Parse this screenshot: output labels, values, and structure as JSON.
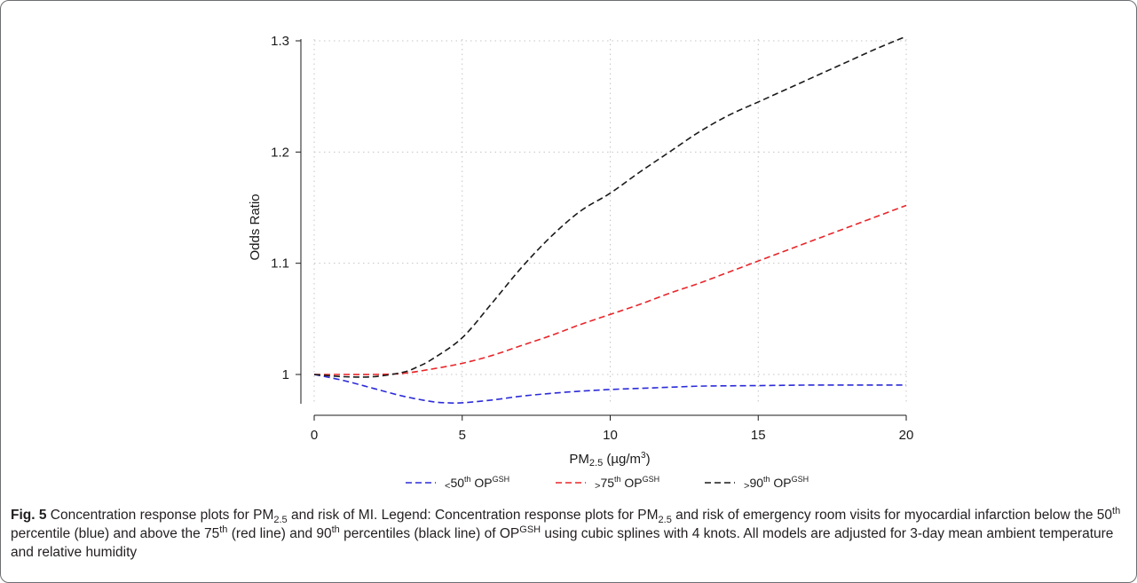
{
  "chart_data": {
    "type": "line",
    "title": "",
    "xlabel": {
      "main": "PM",
      "sub": "2.5",
      "unit_pre": " (µg/m",
      "unit_sup": "3",
      "unit_post": ")"
    },
    "ylabel": "Odds Ratio",
    "xlim": [
      0,
      20
    ],
    "ylim": [
      0.975,
      1.3
    ],
    "xticks": [
      0,
      5,
      10,
      15,
      20
    ],
    "xtick_labels": [
      "0",
      "5",
      "10",
      "15",
      "20"
    ],
    "yticks": [
      1.0,
      1.1,
      1.2,
      1.3
    ],
    "ytick_labels": [
      "1",
      "1.1",
      "1.2",
      "1.3"
    ],
    "grid": true,
    "legend_position": "bottom",
    "series": [
      {
        "legend": {
          "pre": "<",
          "num": "50",
          "sup": "th",
          "op": " OP",
          "opsup": "GSH"
        },
        "color": "#2b2bd9",
        "x": [
          0,
          1,
          2,
          3,
          4,
          4.5,
          5,
          6,
          7,
          8,
          9,
          10,
          11,
          12,
          13,
          14,
          15,
          16,
          17,
          18,
          19,
          20
        ],
        "y": [
          1.0,
          0.9945,
          0.9875,
          0.9805,
          0.9755,
          0.9745,
          0.9745,
          0.977,
          0.9805,
          0.983,
          0.985,
          0.9865,
          0.9875,
          0.9885,
          0.9895,
          0.9898,
          0.99,
          0.9903,
          0.9905,
          0.9905,
          0.9905,
          0.9905
        ]
      },
      {
        "legend": {
          "pre": ">",
          "num": "75",
          "sup": "th",
          "op": " OP",
          "opsup": "GSH"
        },
        "color": "#e8262a",
        "x": [
          0,
          1,
          2,
          3,
          4,
          5,
          6,
          7,
          8,
          9,
          10,
          11,
          12,
          13,
          14,
          15,
          16,
          17,
          18,
          19,
          20
        ],
        "y": [
          1.0,
          1.0,
          1.0,
          1.001,
          1.005,
          1.01,
          1.017,
          1.026,
          1.035,
          1.045,
          1.054,
          1.063,
          1.073,
          1.082,
          1.092,
          1.102,
          1.112,
          1.122,
          1.132,
          1.142,
          1.152
        ]
      },
      {
        "legend": {
          "pre": ">",
          "num": "90",
          "sup": "th",
          "op": " OP",
          "opsup": "GSH"
        },
        "color": "#1a1a1a",
        "x": [
          0,
          1,
          2,
          3,
          3.5,
          4,
          5,
          6,
          7,
          8,
          9,
          10,
          11,
          12,
          13,
          14,
          15,
          16,
          17,
          18,
          19,
          20
        ],
        "y": [
          1.0,
          0.998,
          0.998,
          1.002,
          1.007,
          1.014,
          1.033,
          1.064,
          1.096,
          1.124,
          1.147,
          1.163,
          1.182,
          1.2,
          1.218,
          1.233,
          1.245,
          1.257,
          1.269,
          1.281,
          1.293,
          1.304
        ]
      }
    ]
  },
  "caption": {
    "fig_label": "Fig. 5",
    "s1": " Concentration response plots for PM",
    "s1_sub": "2.5",
    "s2": " and risk of MI. Legend: Concentration response plots for PM",
    "s2_sub": "2.5",
    "s3": " and risk of emergency room visits for myocardial infarction below the 50",
    "s3_sup": "th",
    "s4": " percentile (blue) and above the 75",
    "s4_sup": "th",
    "s5": " (red line) and 90",
    "s5_sup": "th",
    "s6": " percentiles (black line) of OP",
    "s6_sup": "GSH",
    "s7": " using cubic splines with 4 knots. All models are adjusted for 3-day mean ambient temperature and relative humidity"
  }
}
